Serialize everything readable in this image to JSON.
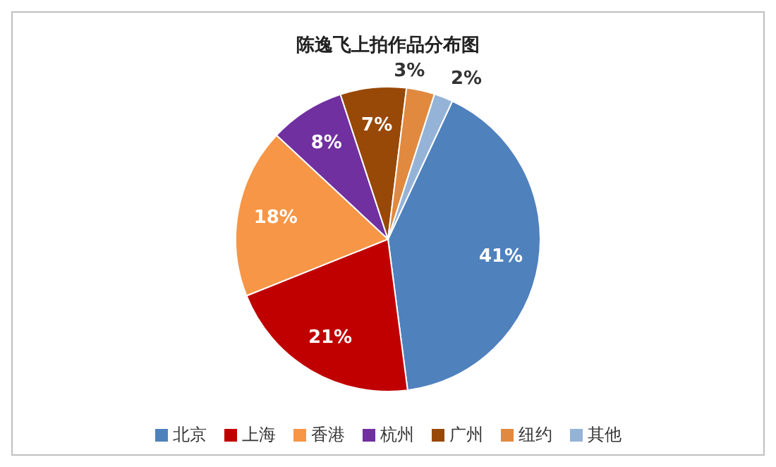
{
  "chart_data": {
    "type": "pie",
    "title": "陈逸飞上拍作品分布图",
    "categories": [
      "北京",
      "上海",
      "香港",
      "杭州",
      "广州",
      "纽约",
      "其他"
    ],
    "values": [
      41,
      21,
      18,
      8,
      7,
      3,
      2
    ],
    "value_labels": [
      "41%",
      "21%",
      "18%",
      "8%",
      "7%",
      "3%",
      "2%"
    ],
    "colors": [
      "#4f81bd",
      "#c00000",
      "#f79646",
      "#7030a0",
      "#984807",
      "#e0893f",
      "#95b3d7"
    ],
    "legend": "bottom"
  }
}
